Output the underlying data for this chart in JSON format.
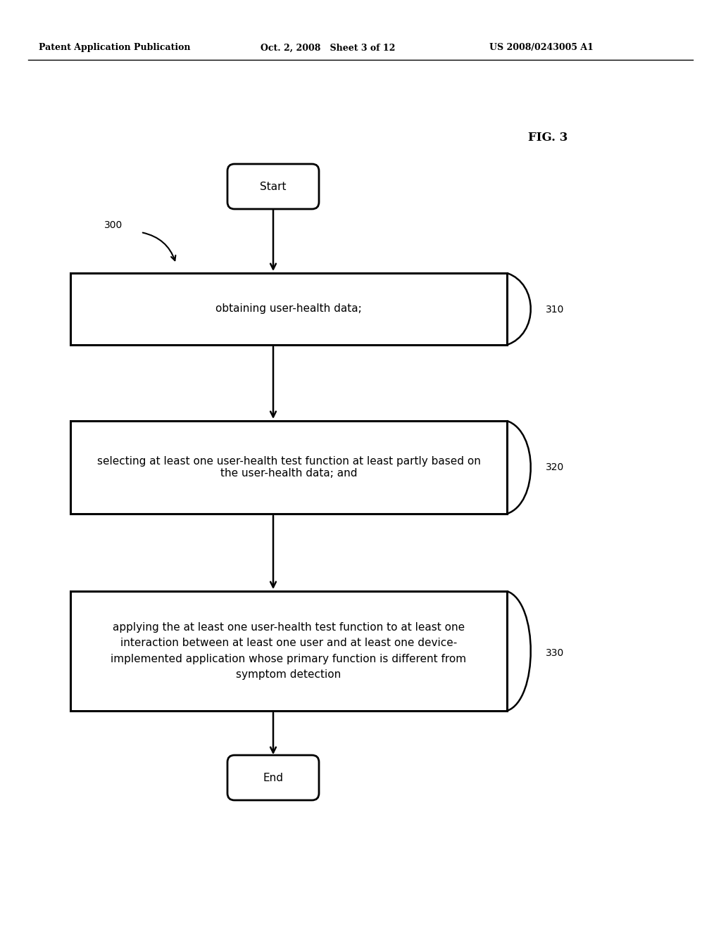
{
  "header_left": "Patent Application Publication",
  "header_mid": "Oct. 2, 2008   Sheet 3 of 12",
  "header_right": "US 2008/0243005 A1",
  "fig_label": "FIG. 3",
  "ref_300": "300",
  "start_label": "Start",
  "end_label": "End",
  "box1_text": "obtaining user-health data;",
  "box1_ref": "310",
  "box2_text": "selecting at least one user-health test function at least partly based on\nthe user-health data; and",
  "box2_ref": "320",
  "box3_text": "applying the at least one user-health test function to at least one\ninteraction between at least one user and at least one device-\nimplemented application whose primary function is different from\nsymptom detection",
  "box3_ref": "330",
  "bg_color": "#ffffff",
  "text_color": "#000000",
  "box_edge_color": "#000000",
  "line_color": "#000000"
}
